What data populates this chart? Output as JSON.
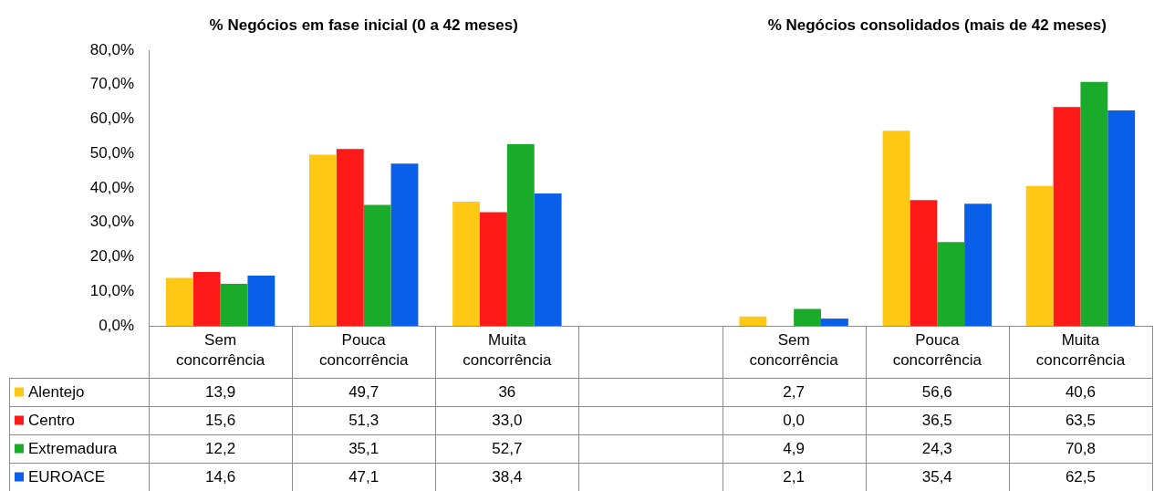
{
  "chart_data": {
    "type": "bar",
    "annotations": [
      "% Negócios em fase inicial (0 a 42 meses)",
      "% Negócios consolidados (mais de 42 meses)"
    ],
    "categories": [
      "Sem concorrência",
      "Pouca concorrência",
      "Muita concorrência",
      null,
      "Sem concorrência",
      "Pouca concorrência",
      "Muita concorrência"
    ],
    "series": [
      {
        "name": "Alentejo",
        "color": "#ffc815",
        "values": [
          13.9,
          49.7,
          36,
          null,
          2.7,
          56.6,
          40.6
        ],
        "value_labels": [
          "13,9",
          "49,7",
          "36",
          null,
          "2,7",
          "56,6",
          "40,6"
        ]
      },
      {
        "name": "Centro",
        "color": "#ff1a1a",
        "values": [
          15.6,
          51.3,
          33.0,
          null,
          0.0,
          36.5,
          63.5
        ],
        "value_labels": [
          "15,6",
          "51,3",
          "33,0",
          null,
          "0,0",
          "36,5",
          "63,5"
        ]
      },
      {
        "name": "Extremadura",
        "color": "#1aab2a",
        "values": [
          12.2,
          35.1,
          52.7,
          null,
          4.9,
          24.3,
          70.8
        ],
        "value_labels": [
          "12,2",
          "35,1",
          "52,7",
          null,
          "4,9",
          "24,3",
          "70,8"
        ]
      },
      {
        "name": "EUROACE",
        "color": "#0a5fe8",
        "values": [
          14.6,
          47.1,
          38.4,
          null,
          2.1,
          35.4,
          62.5
        ],
        "value_labels": [
          "14,6",
          "47,1",
          "38,4",
          null,
          "2,1",
          "35,4",
          "62,5"
        ]
      }
    ],
    "ylim": [
      0,
      80
    ],
    "yticks": [
      {
        "value": 0,
        "label": "0,0%"
      },
      {
        "value": 10,
        "label": "10,0%"
      },
      {
        "value": 20,
        "label": "20,0%"
      },
      {
        "value": 30,
        "label": "30,0%"
      },
      {
        "value": 40,
        "label": "40,0%"
      },
      {
        "value": 50,
        "label": "50,0%"
      },
      {
        "value": 60,
        "label": "60,0%"
      },
      {
        "value": 70,
        "label": "70,0%"
      },
      {
        "value": 80,
        "label": "80,0%"
      }
    ],
    "grid": false,
    "legend": "bottom"
  }
}
